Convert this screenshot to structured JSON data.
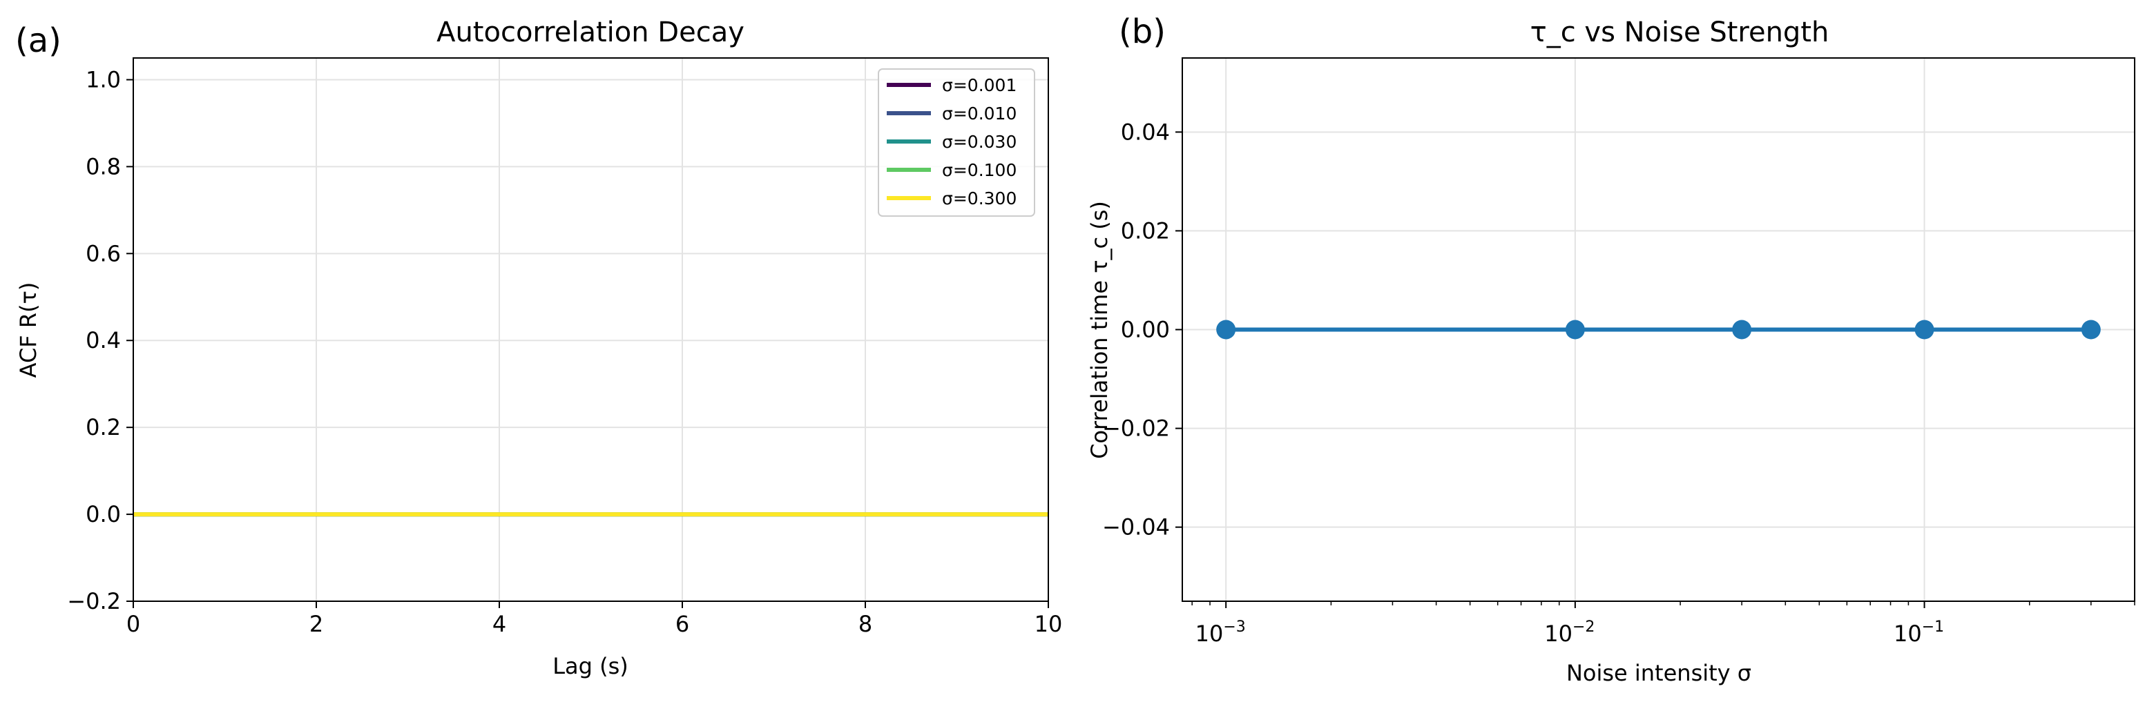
{
  "panels": [
    {
      "panel_label": "(a)",
      "chart_data": {
        "type": "line",
        "title": "Autocorrelation Decay",
        "xlabel": "Lag (s)",
        "ylabel": "ACF R(τ)",
        "xlim": [
          0,
          10
        ],
        "ylim": [
          -0.2,
          1.05
        ],
        "xticks": [
          0,
          2,
          4,
          6,
          8,
          10
        ],
        "yticks": [
          -0.2,
          0.0,
          0.2,
          0.4,
          0.6,
          0.8,
          1.0
        ],
        "xtick_labels": [
          "0",
          "2",
          "4",
          "6",
          "8",
          "10"
        ],
        "ytick_labels": [
          "−0.2",
          "0.0",
          "0.2",
          "0.4",
          "0.6",
          "0.8",
          "1.0"
        ],
        "grid": true,
        "legend_position": "top-right",
        "series": [
          {
            "name": "σ=0.001",
            "color": "#440154",
            "x": [
              0,
              10
            ],
            "y": [
              0,
              0
            ]
          },
          {
            "name": "σ=0.010",
            "color": "#3b528b",
            "x": [
              0,
              10
            ],
            "y": [
              0,
              0
            ]
          },
          {
            "name": "σ=0.030",
            "color": "#21918c",
            "x": [
              0,
              10
            ],
            "y": [
              0,
              0
            ]
          },
          {
            "name": "σ=0.100",
            "color": "#5ec962",
            "x": [
              0,
              10
            ],
            "y": [
              0,
              0
            ]
          },
          {
            "name": "σ=0.300",
            "color": "#fde725",
            "x": [
              0,
              10
            ],
            "y": [
              0,
              0
            ]
          }
        ]
      }
    },
    {
      "panel_label": "(b)",
      "chart_data": {
        "type": "line",
        "title": "τ_c vs Noise Strength",
        "xlabel": "Noise intensity σ",
        "ylabel": "Correlation time τ_c (s)",
        "xscale": "log",
        "xlim": [
          0.00075,
          0.4
        ],
        "ylim": [
          -0.055,
          0.055
        ],
        "xticks": [
          0.001,
          0.01,
          0.1
        ],
        "xtick_labels": [
          {
            "base": "10",
            "exp": "−3"
          },
          {
            "base": "10",
            "exp": "−2"
          },
          {
            "base": "10",
            "exp": "−1"
          }
        ],
        "yticks": [
          -0.04,
          -0.02,
          0.0,
          0.02,
          0.04
        ],
        "ytick_labels": [
          "−0.04",
          "−0.02",
          "0.00",
          "0.02",
          "0.04"
        ],
        "grid": true,
        "series": [
          {
            "name": "τ_c",
            "color": "#1f77b4",
            "marker": "circle",
            "x": [
              0.001,
              0.01,
              0.03,
              0.1,
              0.3
            ],
            "y": [
              0,
              0,
              0,
              0,
              0
            ]
          }
        ]
      }
    }
  ]
}
